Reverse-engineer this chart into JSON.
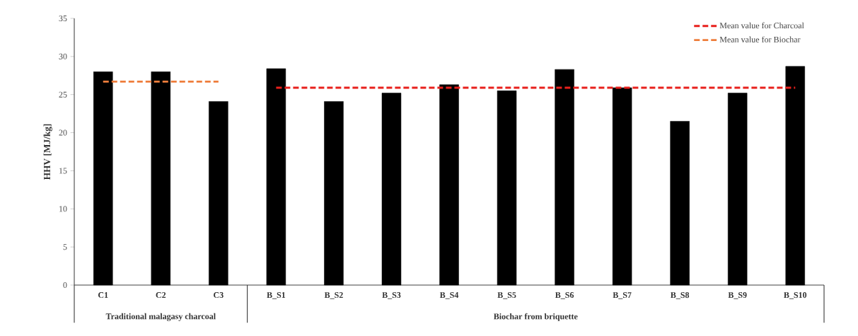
{
  "chart_data": {
    "type": "bar",
    "ylabel": "HHV [MJ/kg]",
    "categories": [
      "C1",
      "C2",
      "C3",
      "B_S1",
      "B_S2",
      "B_S3",
      "B_S4",
      "B_S5",
      "B_S6",
      "B_S7",
      "B_S8",
      "B_S9",
      "B_S10"
    ],
    "series": [
      {
        "color": "#000000",
        "values": [
          28.0,
          28.0,
          24.1,
          28.4,
          24.1,
          25.2,
          26.3,
          25.5,
          28.3,
          25.9,
          21.5,
          25.2,
          28.7
        ]
      },
      {
        "type": "line",
        "name": "Mean value for Charcoal",
        "color": "#e8201c",
        "line_style": "dashed",
        "values": [
          null,
          null,
          null,
          25.9,
          25.9,
          25.9,
          25.9,
          25.9,
          25.9,
          25.9,
          25.9,
          25.9,
          25.9
        ]
      },
      {
        "type": "line",
        "name": "Mean value for Biochar",
        "color": "#ee7d3c",
        "line_style": "dashed",
        "values": [
          26.7,
          26.7,
          26.7,
          null,
          null,
          null,
          null,
          null,
          null,
          null,
          null,
          null,
          null
        ]
      }
    ],
    "ylim": [
      0,
      35
    ],
    "yticks": [
      0,
      5,
      10,
      15,
      20,
      25,
      30,
      35
    ],
    "marker": "none",
    "legend": "top right",
    "grid": false,
    "annotations": [
      "Traditional malagasy charcoal",
      "Biochar from briquette"
    ]
  }
}
